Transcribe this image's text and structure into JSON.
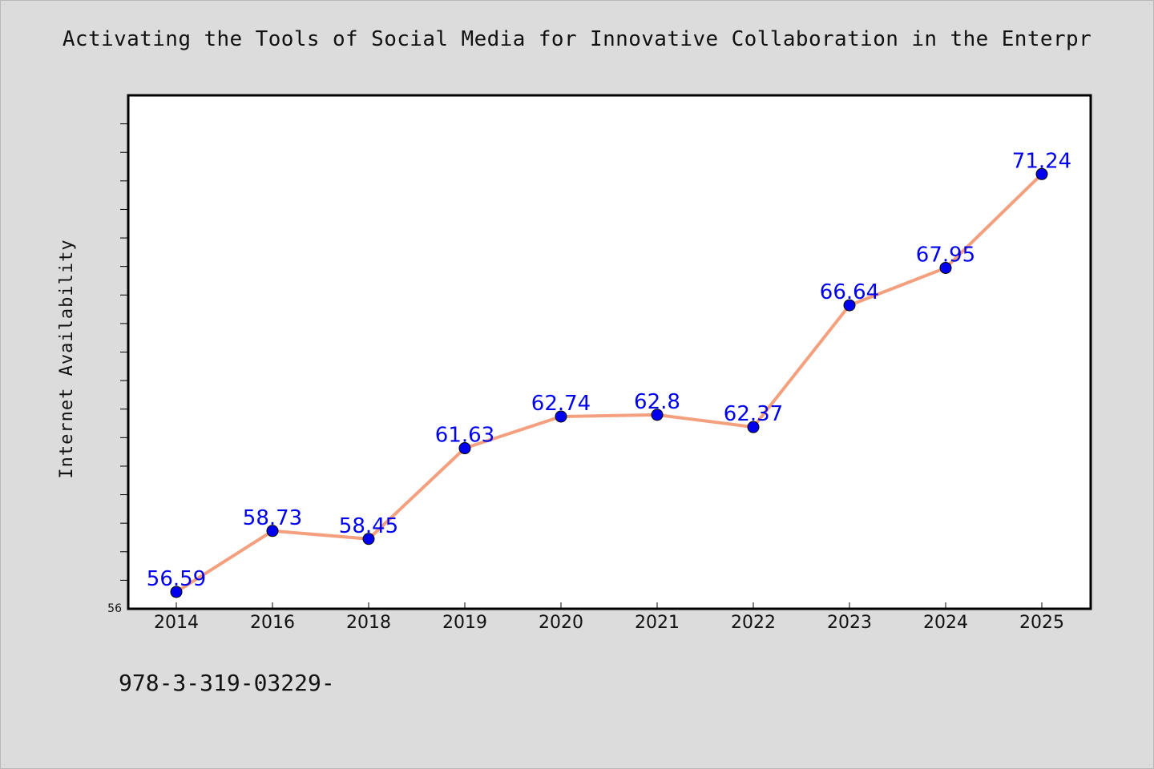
{
  "chart_data": {
    "type": "line",
    "title": "Activating the Tools of Social Media for Innovative Collaboration in the Enterpr",
    "xlabel": "",
    "ylabel": "Internet Availability",
    "categories": [
      "2014",
      "2016",
      "2018",
      "2019",
      "2020",
      "2021",
      "2022",
      "2023",
      "2024",
      "2025"
    ],
    "series": [
      {
        "values": [
          56.59,
          58.73,
          58.45,
          61.63,
          62.74,
          62.8,
          62.37,
          66.64,
          67.95,
          71.24
        ]
      }
    ],
    "data_labels": [
      "56.59",
      "58.73",
      "58.45",
      "61.63",
      "62.74",
      "62.8",
      "62.37",
      "66.64",
      "67.95",
      "71.24"
    ],
    "ylim": [
      56,
      74
    ],
    "ytick_labels": [
      "56"
    ],
    "grid": false,
    "legend": "none",
    "colors": {
      "line": "#f4a07e",
      "marker": "#0000ee",
      "data_label": "#0000ee"
    }
  },
  "footer": {
    "text": "978-3-319-03229-"
  }
}
